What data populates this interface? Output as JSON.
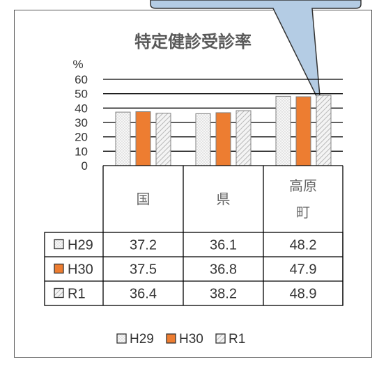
{
  "chart_data": {
    "type": "bar",
    "title": "特定健診受診率",
    "unit": "%",
    "ylim": [
      0,
      60
    ],
    "yticks": [
      "60",
      "50",
      "40",
      "30",
      "20",
      "10",
      "0"
    ],
    "categories": [
      "国",
      "県",
      "高原町"
    ],
    "category_lines": [
      [
        "国"
      ],
      [
        "県"
      ],
      [
        "高原",
        "町"
      ]
    ],
    "series": [
      {
        "name": "H29",
        "values": [
          37.2,
          36.1,
          48.2
        ],
        "labels": [
          "37.2",
          "36.1",
          "48.2"
        ],
        "color": "#f2f2f2",
        "pattern": "dots"
      },
      {
        "name": "H30",
        "values": [
          37.5,
          36.8,
          47.9
        ],
        "labels": [
          "37.5",
          "36.8",
          "47.9"
        ],
        "color": "#ed7d31",
        "pattern": "solid"
      },
      {
        "name": "R1",
        "values": [
          36.4,
          38.2,
          48.9
        ],
        "labels": [
          "36.4",
          "38.2",
          "48.9"
        ],
        "color": "#e7e6e6",
        "pattern": "hatch"
      }
    ],
    "legend_position": "bottom"
  },
  "colors": {
    "callout_fill": "#b4cce4",
    "axis": "#000000",
    "grid": "#000000"
  }
}
